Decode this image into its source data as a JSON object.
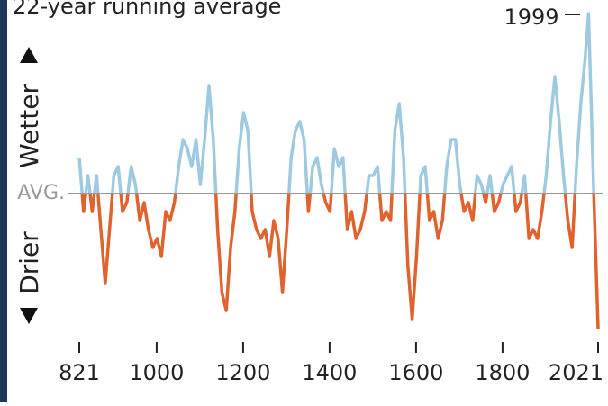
{
  "chart_data": {
    "type": "line",
    "title": "22-year running average",
    "axis_up_label": "Wetter",
    "axis_down_label": "Drier",
    "annotation": "1999",
    "x": [
      821,
      831,
      841,
      851,
      861,
      871,
      881,
      891,
      901,
      911,
      921,
      931,
      941,
      951,
      961,
      971,
      981,
      991,
      1001,
      1011,
      1021,
      1031,
      1041,
      1051,
      1061,
      1071,
      1081,
      1091,
      1101,
      1111,
      1121,
      1131,
      1141,
      1151,
      1161,
      1171,
      1181,
      1191,
      1201,
      1211,
      1221,
      1231,
      1241,
      1251,
      1261,
      1271,
      1281,
      1291,
      1301,
      1311,
      1321,
      1331,
      1341,
      1351,
      1361,
      1371,
      1381,
      1391,
      1401,
      1411,
      1421,
      1431,
      1441,
      1451,
      1461,
      1471,
      1481,
      1491,
      1501,
      1511,
      1521,
      1531,
      1541,
      1551,
      1561,
      1571,
      1581,
      1591,
      1601,
      1611,
      1621,
      1631,
      1641,
      1651,
      1661,
      1671,
      1681,
      1691,
      1701,
      1711,
      1721,
      1731,
      1741,
      1751,
      1761,
      1771,
      1781,
      1791,
      1801,
      1811,
      1821,
      1831,
      1841,
      1851,
      1861,
      1871,
      1881,
      1891,
      1901,
      1911,
      1921,
      1931,
      1941,
      1951,
      1961,
      1971,
      1981,
      1991,
      1999,
      2011,
      2021
    ],
    "values": [
      0.4,
      -0.2,
      0.2,
      -0.2,
      0.2,
      -0.4,
      -1.0,
      -0.4,
      0.2,
      0.3,
      -0.2,
      -0.1,
      0.3,
      0.1,
      -0.3,
      -0.1,
      -0.4,
      -0.6,
      -0.5,
      -0.7,
      -0.2,
      -0.3,
      -0.1,
      0.3,
      0.6,
      0.5,
      0.3,
      0.6,
      0.1,
      0.6,
      1.2,
      0.6,
      -0.4,
      -1.1,
      -1.3,
      -0.6,
      -0.2,
      0.5,
      0.9,
      0.7,
      -0.2,
      -0.4,
      -0.5,
      -0.4,
      -0.7,
      -0.3,
      -0.5,
      -1.1,
      -0.4,
      0.4,
      0.7,
      0.8,
      0.6,
      -0.2,
      0.3,
      0.4,
      0.1,
      -0.1,
      -0.2,
      0.5,
      0.3,
      0.4,
      -0.4,
      -0.2,
      -0.5,
      -0.4,
      -0.2,
      0.2,
      0.2,
      0.3,
      -0.3,
      -0.2,
      -0.3,
      0.7,
      1.0,
      0.4,
      -0.8,
      -1.4,
      -0.7,
      0.2,
      0.3,
      -0.3,
      -0.2,
      -0.5,
      -0.3,
      0.3,
      0.6,
      0.6,
      0.1,
      -0.2,
      -0.1,
      -0.3,
      0.2,
      0.1,
      -0.1,
      0.2,
      -0.2,
      -0.1,
      0.1,
      0.2,
      0.3,
      -0.2,
      -0.1,
      0.2,
      -0.5,
      -0.4,
      -0.5,
      -0.2,
      0.2,
      0.8,
      1.3,
      0.8,
      0.2,
      -0.3,
      -0.6,
      0.3,
      1.0,
      1.5,
      2.0,
      0.0,
      -1.5
    ],
    "color_above": "#9ecae1",
    "color_below": "#e0622c",
    "xlim": [
      821,
      2021
    ],
    "xticks": [
      821,
      1000,
      1200,
      1400,
      1600,
      1800,
      2021
    ],
    "ylim": [
      -1.55,
      2.0
    ],
    "yticks": [
      {
        "value": 0,
        "label": "AVG."
      }
    ]
  }
}
